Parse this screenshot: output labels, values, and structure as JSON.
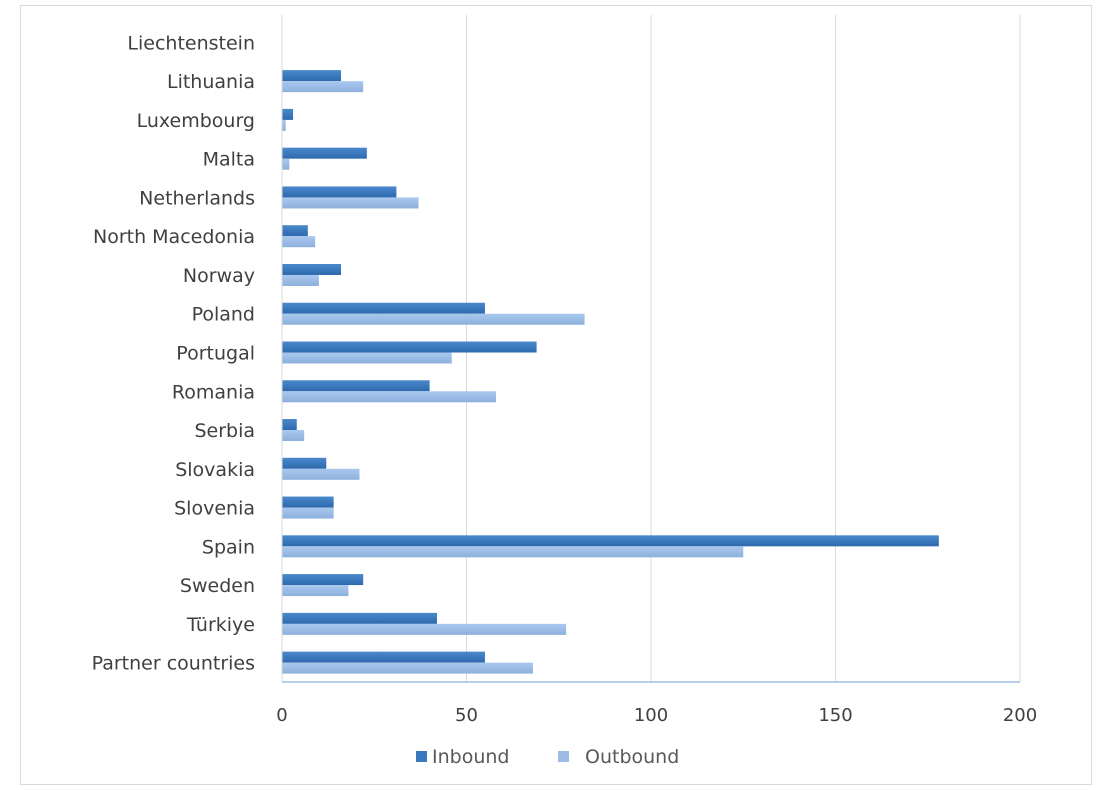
{
  "chart_data": {
    "type": "bar",
    "orientation": "horizontal",
    "categories": [
      "Liechtenstein",
      "Lithuania",
      "Luxembourg",
      "Malta",
      "Netherlands",
      "North Macedonia",
      "Norway",
      "Poland",
      "Portugal",
      "Romania",
      "Serbia",
      "Slovakia",
      "Slovenia",
      "Spain",
      "Sweden",
      "Türkiye",
      "Partner countries"
    ],
    "series": [
      {
        "name": "Inbound",
        "color": "#3a78bd",
        "values": [
          0,
          16,
          3,
          23,
          31,
          7,
          16,
          55,
          69,
          40,
          4,
          12,
          14,
          178,
          22,
          42,
          55
        ]
      },
      {
        "name": "Outbound",
        "color": "#9dbde6",
        "values": [
          0,
          22,
          1,
          2,
          37,
          9,
          10,
          82,
          46,
          58,
          6,
          21,
          14,
          125,
          18,
          77,
          68
        ]
      }
    ],
    "xlim": [
      0,
      200
    ],
    "xticks": [
      "0",
      "50",
      "100",
      "150",
      "200"
    ],
    "grid": "vertical",
    "legend": "bottom"
  }
}
